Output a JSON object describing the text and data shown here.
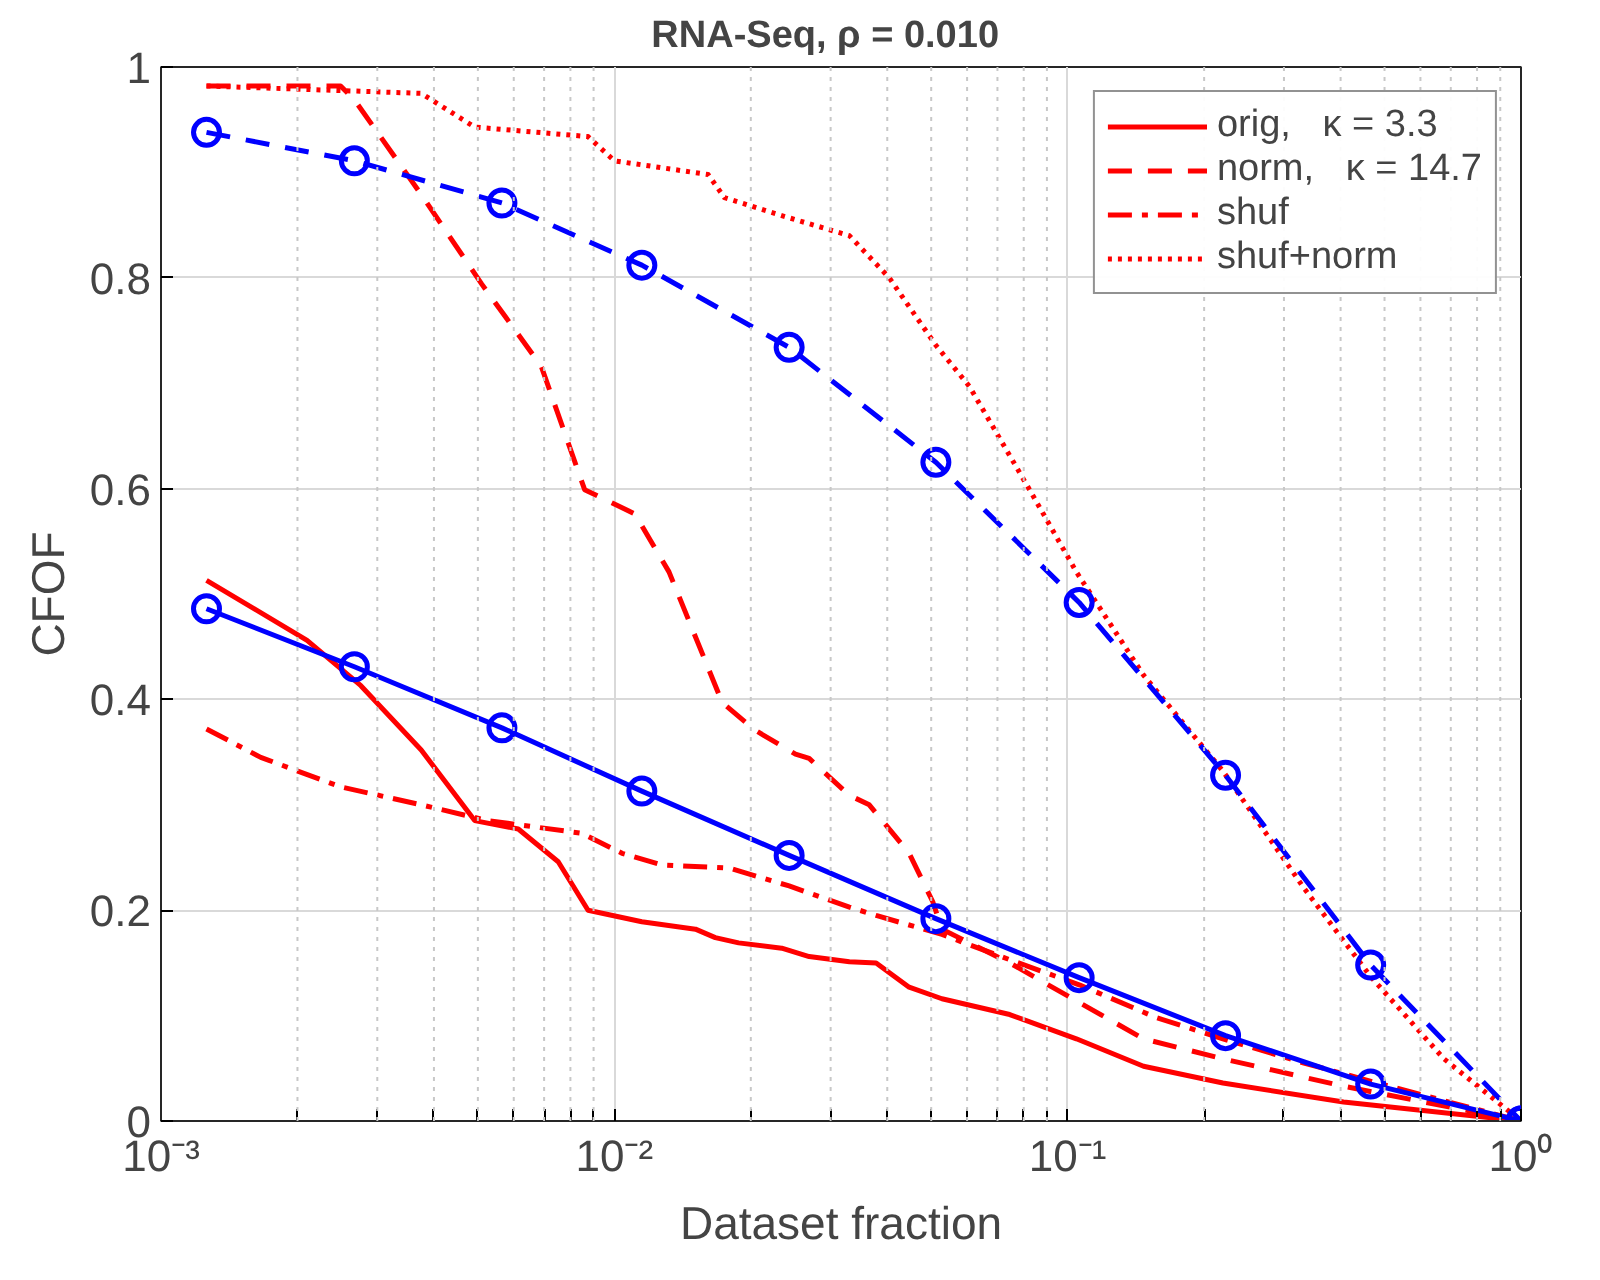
{
  "chart_data": {
    "type": "line",
    "title": "RNA-Seq,    ρ = 0.010",
    "xlabel": "Dataset fraction",
    "ylabel": "CFOF",
    "log": "x",
    "xlim": [
      0.001,
      1
    ],
    "ylim": [
      0,
      1
    ],
    "xticks": [
      {
        "value": 0.001,
        "label": "10⁻³"
      },
      {
        "value": 0.002,
        "label": null
      },
      {
        "value": 0.003,
        "label": null
      },
      {
        "value": 0.004,
        "label": null
      },
      {
        "value": 0.005,
        "label": null
      },
      {
        "value": 0.006,
        "label": null
      },
      {
        "value": 0.007,
        "label": null
      },
      {
        "value": 0.008,
        "label": null
      },
      {
        "value": 0.009,
        "label": null
      },
      {
        "value": 0.01,
        "label": "10⁻²"
      },
      {
        "value": 0.02,
        "label": null
      },
      {
        "value": 0.03,
        "label": null
      },
      {
        "value": 0.04,
        "label": null
      },
      {
        "value": 0.05,
        "label": null
      },
      {
        "value": 0.06,
        "label": null
      },
      {
        "value": 0.07,
        "label": null
      },
      {
        "value": 0.08,
        "label": null
      },
      {
        "value": 0.09,
        "label": null
      },
      {
        "value": 0.1,
        "label": "10⁻¹"
      },
      {
        "value": 0.2,
        "label": null
      },
      {
        "value": 0.3,
        "label": null
      },
      {
        "value": 0.4,
        "label": null
      },
      {
        "value": 0.5,
        "label": null
      },
      {
        "value": 0.6,
        "label": null
      },
      {
        "value": 0.7,
        "label": null
      },
      {
        "value": 0.8,
        "label": null
      },
      {
        "value": 0.9,
        "label": null
      },
      {
        "value": 1,
        "label": "10⁰"
      }
    ],
    "yticks": [
      0,
      0.2,
      0.4,
      0.6,
      0.8,
      1
    ],
    "grid": true,
    "legend": "top right",
    "series": [
      {
        "name": "orig,   κ = 3.3",
        "color": "#ff0000",
        "line_style": "solid",
        "marker": "none",
        "x": [
          0.00126,
          0.0021,
          0.00276,
          0.00375,
          0.00492,
          0.00614,
          0.00752,
          0.00875,
          0.0115,
          0.0151,
          0.0167,
          0.0188,
          0.0234,
          0.0269,
          0.033,
          0.0378,
          0.0447,
          0.0528,
          0.0745,
          0.1045,
          0.147,
          0.22,
          0.406,
          1
        ],
        "values": [
          0.513,
          0.456,
          0.413,
          0.352,
          0.285,
          0.277,
          0.246,
          0.2,
          0.189,
          0.182,
          0.174,
          0.169,
          0.164,
          0.156,
          0.151,
          0.15,
          0.127,
          0.116,
          0.101,
          0.078,
          0.052,
          0.036,
          0.018,
          0
        ]
      },
      {
        "name": "norm,   κ = 14.7",
        "color": "#ff0000",
        "line_style": "dashed",
        "marker": "none",
        "x": [
          0.00126,
          0.00249,
          0.00267,
          0.00375,
          0.0051,
          0.0069,
          0.0086,
          0.0111,
          0.0132,
          0.0173,
          0.0204,
          0.0251,
          0.0269,
          0.033,
          0.0365,
          0.0447,
          0.0504,
          0.0528,
          0.0745,
          0.1045,
          0.147,
          0.22,
          0.406,
          1
        ],
        "values": [
          0.982,
          0.982,
          0.969,
          0.879,
          0.794,
          0.716,
          0.599,
          0.576,
          0.521,
          0.397,
          0.371,
          0.348,
          0.344,
          0.309,
          0.3,
          0.254,
          0.208,
          0.182,
          0.15,
          0.114,
          0.078,
          0.059,
          0.033,
          0
        ]
      },
      {
        "name": "shuf",
        "color": "#ff0000",
        "line_style": "dashdot",
        "marker": "none",
        "x": [
          0.00126,
          0.00166,
          0.00249,
          0.00375,
          0.00526,
          0.00847,
          0.0104,
          0.0127,
          0.0179,
          0.0243,
          0.033,
          0.0378,
          0.0528,
          0.0745,
          0.1064,
          0.157,
          0.22,
          0.332,
          0.482,
          1
        ],
        "values": [
          0.372,
          0.345,
          0.317,
          0.3,
          0.285,
          0.273,
          0.254,
          0.243,
          0.24,
          0.223,
          0.203,
          0.195,
          0.177,
          0.153,
          0.129,
          0.098,
          0.078,
          0.055,
          0.036,
          0
        ]
      },
      {
        "name": "shuf+norm",
        "color": "#ff0000",
        "line_style": "dotted",
        "marker": "none",
        "x": [
          0.00126,
          0.00375,
          0.00492,
          0.00875,
          0.01,
          0.0161,
          0.0175,
          0.0234,
          0.033,
          0.0404,
          0.0512,
          0.0607,
          0.0824,
          0.1045,
          0.147,
          0.22,
          0.332,
          0.466,
          0.676,
          1
        ],
        "values": [
          0.982,
          0.975,
          0.943,
          0.934,
          0.911,
          0.898,
          0.876,
          0.859,
          0.84,
          0.8,
          0.736,
          0.697,
          0.599,
          0.521,
          0.423,
          0.332,
          0.221,
          0.137,
          0.059,
          0
        ]
      },
      {
        "color": "#0000ff",
        "line_style": "solid",
        "marker": "circle",
        "x": [
          0.00126,
          0.00267,
          0.00565,
          0.0115,
          0.0243,
          0.0512,
          0.106,
          0.223,
          0.466,
          1
        ],
        "values": [
          0.486,
          0.431,
          0.373,
          0.313,
          0.252,
          0.192,
          0.136,
          0.081,
          0.035,
          0
        ]
      },
      {
        "color": "#0000ff",
        "line_style": "dashed",
        "marker": "circle",
        "x": [
          0.00126,
          0.00267,
          0.00565,
          0.0115,
          0.0243,
          0.0512,
          0.106,
          0.223,
          0.466,
          1
        ],
        "values": [
          0.938,
          0.911,
          0.871,
          0.812,
          0.734,
          0.625,
          0.492,
          0.328,
          0.148,
          0
        ]
      }
    ]
  }
}
